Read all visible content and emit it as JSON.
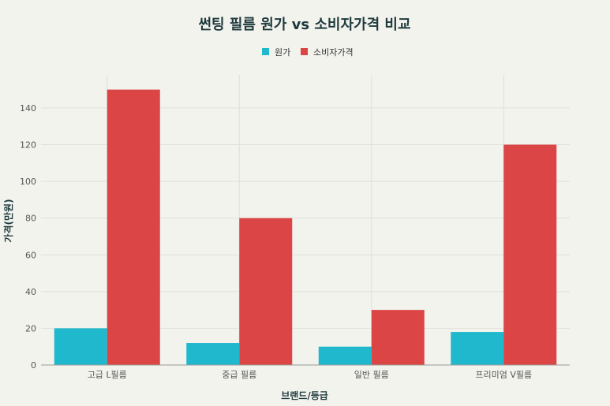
{
  "chart_data": {
    "type": "bar",
    "title": "썬팅 필름 원가 vs 소비자가격 비교",
    "xlabel": "브랜드/등급",
    "ylabel": "가격(만원)",
    "categories": [
      "고급 L필름",
      "중급 필름",
      "일반 필름",
      "프리미엄 V필름"
    ],
    "series": [
      {
        "name": "원가",
        "color": "#1fb8cd",
        "values": [
          20,
          12,
          10,
          18
        ]
      },
      {
        "name": "소비자가격",
        "color": "#db4545",
        "values": [
          150,
          80,
          30,
          120
        ]
      }
    ],
    "ylim": [
      0,
      158
    ],
    "yticks": [
      0,
      20,
      40,
      60,
      80,
      100,
      120,
      140
    ],
    "grid": true,
    "legend": "top-center"
  }
}
